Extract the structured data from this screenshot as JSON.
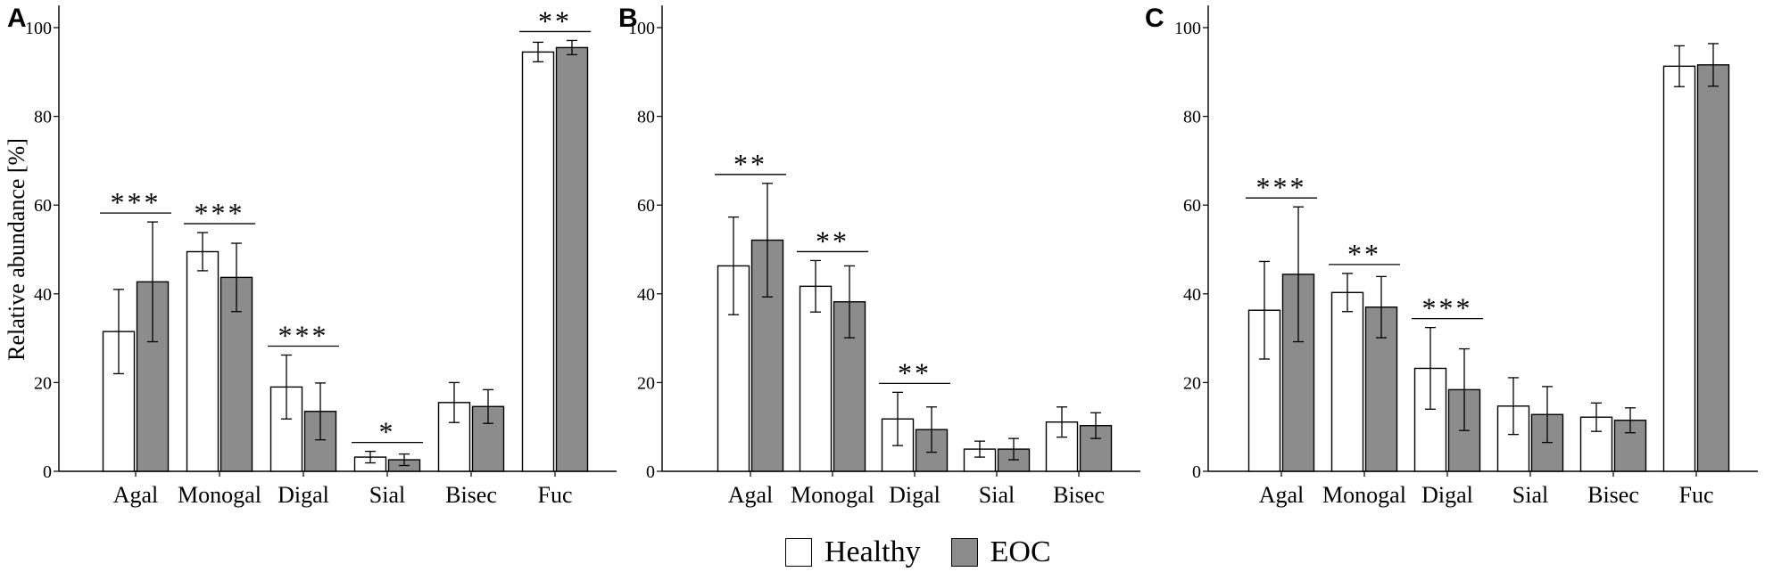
{
  "figure": {
    "ylabel": "Relative abundance [%]",
    "legend": [
      {
        "label": "Healthy",
        "color": "#ffffff"
      },
      {
        "label": "EOC",
        "color": "#8c8c8c"
      }
    ]
  },
  "chart_data": [
    {
      "type": "bar",
      "panel": "A",
      "ylabel": "Relative abundance [%]",
      "ylim": [
        0,
        105
      ],
      "yticks": [
        0,
        20,
        40,
        60,
        80,
        100
      ],
      "categories": [
        "Agal",
        "Monogal",
        "Digal",
        "Sial",
        "Bisec",
        "Fuc"
      ],
      "series": [
        {
          "name": "Healthy",
          "color": "#ffffff",
          "values": [
            31.5,
            49.5,
            19.0,
            3.2,
            15.5,
            94.5
          ],
          "errors": [
            9.5,
            4.3,
            7.2,
            1.3,
            4.5,
            2.2
          ]
        },
        {
          "name": "EOC",
          "color": "#8c8c8c",
          "values": [
            42.7,
            43.7,
            13.5,
            2.6,
            14.6,
            95.5
          ],
          "errors": [
            13.5,
            7.7,
            6.4,
            1.3,
            3.8,
            1.6
          ]
        }
      ],
      "significance": [
        "***",
        "***",
        "***",
        "*",
        "",
        "**"
      ]
    },
    {
      "type": "bar",
      "panel": "B",
      "ylabel": "",
      "ylim": [
        0,
        105
      ],
      "yticks": [
        0,
        20,
        40,
        60,
        80,
        100
      ],
      "categories": [
        "Agal",
        "Monogal",
        "Digal",
        "Sial",
        "Bisec"
      ],
      "series": [
        {
          "name": "Healthy",
          "color": "#ffffff",
          "values": [
            46.3,
            41.7,
            11.8,
            5.0,
            11.1
          ],
          "errors": [
            11.0,
            5.8,
            6.0,
            1.8,
            3.4
          ]
        },
        {
          "name": "EOC",
          "color": "#8c8c8c",
          "values": [
            52.1,
            38.2,
            9.4,
            5.0,
            10.3
          ],
          "errors": [
            12.8,
            8.1,
            5.1,
            2.4,
            2.9
          ]
        }
      ],
      "significance": [
        "**",
        "**",
        "**",
        "",
        ""
      ]
    },
    {
      "type": "bar",
      "panel": "C",
      "ylabel": "",
      "ylim": [
        0,
        105
      ],
      "yticks": [
        0,
        20,
        40,
        60,
        80,
        100
      ],
      "categories": [
        "Agal",
        "Monogal",
        "Digal",
        "Sial",
        "Bisec",
        "Fuc"
      ],
      "series": [
        {
          "name": "Healthy",
          "color": "#ffffff",
          "values": [
            36.3,
            40.3,
            23.2,
            14.7,
            12.2,
            91.3
          ],
          "errors": [
            11.0,
            4.3,
            9.2,
            6.4,
            3.2,
            4.6
          ]
        },
        {
          "name": "EOC",
          "color": "#8c8c8c",
          "values": [
            44.4,
            37.0,
            18.4,
            12.8,
            11.5,
            91.6
          ],
          "errors": [
            15.2,
            6.9,
            9.2,
            6.3,
            2.8,
            4.8
          ]
        }
      ],
      "significance": [
        "***",
        "**",
        "***",
        "",
        "",
        ""
      ]
    }
  ]
}
